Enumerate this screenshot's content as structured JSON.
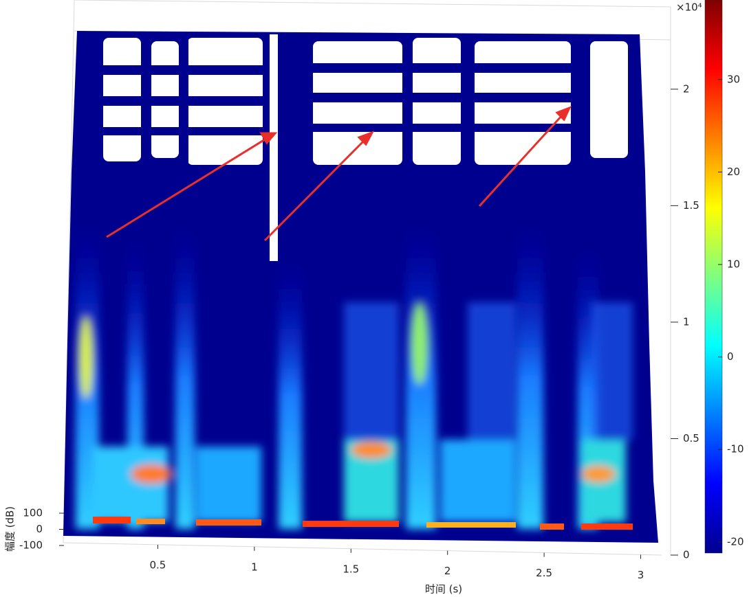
{
  "chart_data": {
    "type": "surface",
    "x_label": "时间 (s)",
    "z_label": "幅度 (dB)",
    "y_exponent": "×10⁴",
    "xlim": [
      0,
      3.08
    ],
    "xticks": [
      0.5,
      1,
      1.5,
      2,
      2.5,
      3
    ],
    "ylim": [
      0,
      2.2
    ],
    "yticks": [
      0,
      0.5,
      1,
      1.5,
      2
    ],
    "zlim": [
      -100,
      100
    ],
    "zticks": [
      -100,
      0,
      100
    ],
    "colorbar": {
      "lim": [
        -21.2,
        38.6
      ],
      "ticks": [
        -20,
        -10,
        0,
        10,
        20,
        30
      ],
      "colormap": "jet"
    }
  }
}
